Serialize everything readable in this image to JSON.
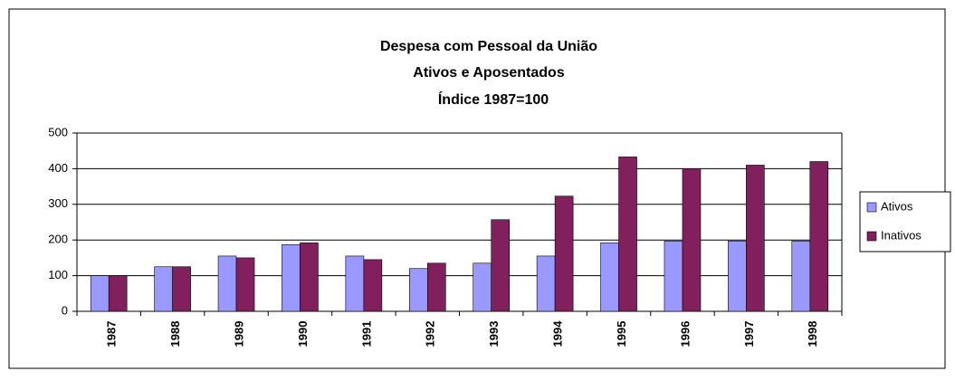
{
  "chart_data": {
    "type": "bar",
    "title": "Despesa com Pessoal da União",
    "subtitle": [
      "Ativos e Aposentados",
      "Índice 1987=100"
    ],
    "categories": [
      "1987",
      "1988",
      "1989",
      "1990",
      "1991",
      "1992",
      "1993",
      "1994",
      "1995",
      "1996",
      "1997",
      "1998"
    ],
    "series": [
      {
        "name": "Ativos",
        "color": "#9999ff",
        "values": [
          100,
          125,
          155,
          187,
          155,
          120,
          135,
          155,
          192,
          197,
          197,
          197
        ]
      },
      {
        "name": "Inativos",
        "color": "#82205e",
        "values": [
          100,
          125,
          150,
          192,
          145,
          135,
          257,
          323,
          433,
          400,
          410,
          420
        ]
      }
    ],
    "ylim": [
      0,
      500
    ],
    "yticks": [
      0,
      100,
      200,
      300,
      400,
      500
    ],
    "grid": true,
    "legend": "right"
  }
}
